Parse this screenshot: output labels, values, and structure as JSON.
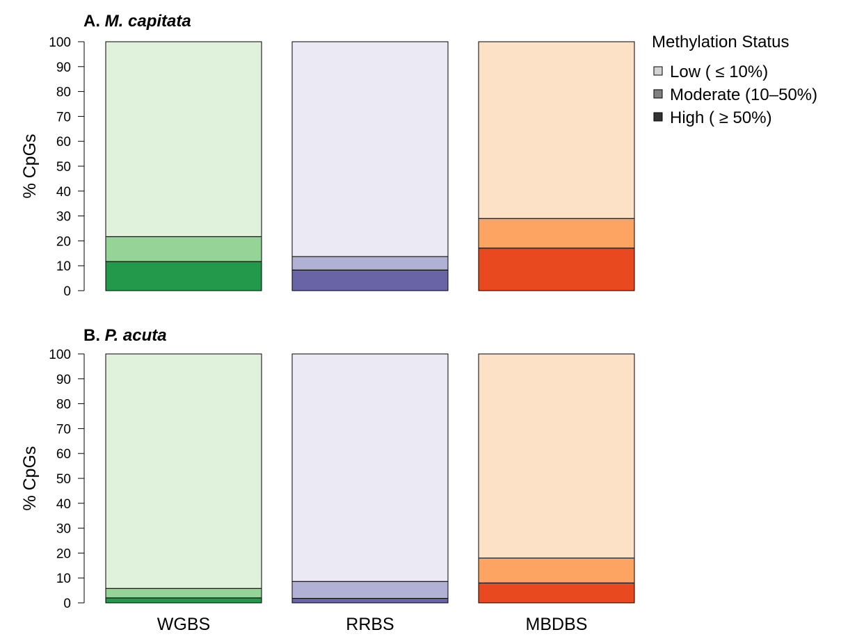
{
  "chart_data": {
    "type": "bar",
    "stacked": true,
    "categories": [
      "WGBS",
      "RRBS",
      "MBDBS"
    ],
    "ylabel": "% CpGs",
    "ylim": [
      0,
      100
    ],
    "yticks": [
      0,
      10,
      20,
      30,
      40,
      50,
      60,
      70,
      80,
      90,
      100
    ],
    "grid": false,
    "legend": {
      "title": "Methylation Status",
      "position": "top-right",
      "items": [
        {
          "label": "Low ( ≤ 10%)",
          "swatch": "#d3d3d3"
        },
        {
          "label": "Moderate (10–50%)",
          "swatch": "#808080"
        },
        {
          "label": "High ( ≥ 50%)",
          "swatch": "#333333"
        }
      ]
    },
    "category_colors": {
      "WGBS": {
        "High": "#23994c",
        "Moderate": "#95d396",
        "Low": "#e0f2dc"
      },
      "RRBS": {
        "High": "#6864a6",
        "Moderate": "#b0b1d5",
        "Low": "#ebeaf4"
      },
      "MBDBS": {
        "High": "#e8491e",
        "Moderate": "#fda463",
        "Low": "#fde1c7"
      }
    },
    "panels": [
      {
        "letter": "A.",
        "species": "M. capitata",
        "series": [
          {
            "name": "High",
            "values": [
              11.7,
              8.3,
              17.1
            ]
          },
          {
            "name": "Moderate",
            "values": [
              10.0,
              5.4,
              11.9
            ]
          },
          {
            "name": "Low",
            "values": [
              78.3,
              86.3,
              71.0
            ]
          }
        ]
      },
      {
        "letter": "B.",
        "species": "P. acuta",
        "series": [
          {
            "name": "High",
            "values": [
              2.0,
              1.8,
              8.0
            ]
          },
          {
            "name": "Moderate",
            "values": [
              3.8,
              6.8,
              10.0
            ]
          },
          {
            "name": "Low",
            "values": [
              94.2,
              91.4,
              82.0
            ]
          }
        ]
      }
    ]
  }
}
